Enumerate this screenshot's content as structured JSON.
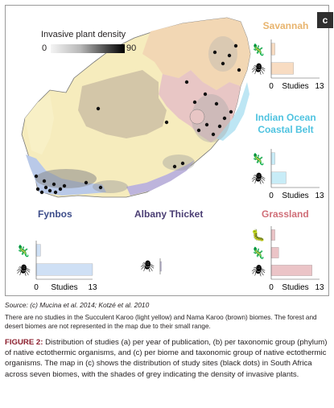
{
  "panel_label": "c",
  "legend": {
    "title": "Invasive plant density",
    "min": "0",
    "max": "90"
  },
  "biomes": {
    "savannah": {
      "title": "Savannah",
      "color": "#e8b46e",
      "bar_color": "#f8dcc2"
    },
    "indian_ocean": {
      "title": "Indian Ocean Coastal Belt",
      "color": "#4fc3e0",
      "bar_color": "#c8ecf7"
    },
    "fynbos": {
      "title": "Fynbos",
      "color": "#3d4d8a",
      "bar_color": "#cfe0f5"
    },
    "albany": {
      "title": "Albany Thicket",
      "color": "#4a3d73",
      "bar_color": "#c9c3e6"
    },
    "grassland": {
      "title": "Grassland",
      "color": "#d06e78",
      "bar_color": "#ebc4c7"
    }
  },
  "chart_data": [
    {
      "type": "bar",
      "biome": "Savannah",
      "categories": [
        "reptile",
        "insect"
      ],
      "values": [
        1,
        6
      ],
      "xlabel": "Studies",
      "xlim": [
        0,
        13
      ],
      "xticks": [
        "0",
        "13"
      ]
    },
    {
      "type": "bar",
      "biome": "Indian Ocean Coastal Belt",
      "categories": [
        "reptile",
        "insect"
      ],
      "values": [
        1,
        4
      ],
      "xlabel": "Studies",
      "xlim": [
        0,
        13
      ],
      "xticks": [
        "0",
        "13"
      ]
    },
    {
      "type": "bar",
      "biome": "Fynbos",
      "categories": [
        "reptile",
        "insect"
      ],
      "values": [
        1,
        13
      ],
      "xlabel": "Studies",
      "xlim": [
        0,
        13
      ],
      "xticks": [
        "0",
        "13"
      ]
    },
    {
      "type": "bar",
      "biome": "Albany Thicket",
      "categories": [
        "insect"
      ],
      "values": [
        1
      ],
      "xlabel": "",
      "xlim": [
        0,
        13
      ],
      "xticks": []
    },
    {
      "type": "bar",
      "biome": "Grassland",
      "categories": [
        "annelid",
        "reptile",
        "insect"
      ],
      "values": [
        1,
        2,
        11
      ],
      "xlabel": "Studies",
      "xlim": [
        0,
        13
      ],
      "xticks": [
        "0",
        "13"
      ]
    }
  ],
  "source": {
    "label": "Source:",
    "text": "(c) Mucina et al. 2014; Kotzé et al. 2010"
  },
  "note": "There are no studies in the Succulent Karoo (light yellow) and Nama Karoo (brown) biomes. The forest and desert biomes are not represented in the map due to their small range.",
  "caption": {
    "label": "FIGURE 2:",
    "text": "Distribution of studies (a) per year of publication, (b) per taxonomic group (phylum) of native ectothermic organisms, and (c) per biome and taxonomic group of native ectothermic organisms. The map in (c) shows the distribution of study sites (black dots) in South Africa across seven biomes, with the shades of grey indicating the density of invasive plants."
  }
}
